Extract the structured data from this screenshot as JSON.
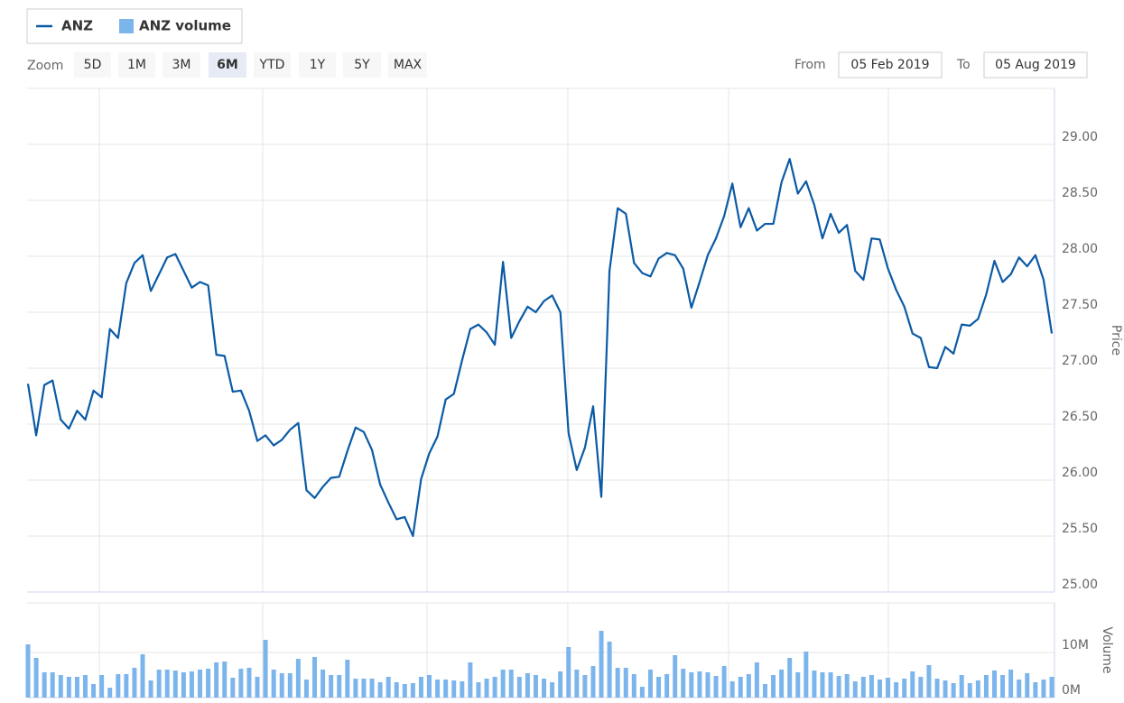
{
  "range_selector": {
    "zoom_label": "Zoom",
    "buttons": [
      "5D",
      "1M",
      "3M",
      "6M",
      "YTD",
      "1Y",
      "5Y",
      "MAX"
    ],
    "selected": "6M",
    "from_label": "From",
    "from": "05 Feb 2019",
    "to_label": "To",
    "to": "05 Aug 2019"
  },
  "chart_data": [
    {
      "type": "line",
      "y_label": "Price",
      "categories": [
        null,
        null,
        null,
        null,
        null,
        null,
        null,
        null,
        null,
        null,
        null,
        null,
        null,
        null,
        null,
        null,
        null,
        null,
        null,
        null,
        null,
        null,
        null,
        null,
        null,
        null,
        null,
        null,
        null,
        null,
        null,
        null,
        null,
        null,
        null,
        null,
        null,
        null,
        null,
        null,
        null,
        null,
        null,
        null,
        null,
        null,
        null,
        null,
        null,
        null,
        null,
        null,
        null,
        null,
        null,
        null,
        null,
        null,
        null,
        null,
        null,
        null,
        null,
        null,
        null,
        null,
        null,
        null,
        null,
        null,
        null,
        null,
        null,
        null,
        null,
        null,
        null,
        null,
        null,
        null,
        null,
        null,
        null,
        null,
        null,
        null,
        null,
        null,
        null,
        null,
        null,
        null,
        null,
        null,
        null,
        null,
        null,
        null,
        null,
        null,
        null,
        null,
        null,
        null,
        null,
        null,
        null,
        null,
        null,
        null,
        null,
        null,
        null,
        null,
        null,
        null,
        null,
        null,
        null,
        null,
        null,
        null,
        null,
        null,
        null,
        null
      ],
      "series": [
        {
          "name": "ANZ",
          "color": "#0b5aa6",
          "values": [
            26.86,
            26.4,
            26.85,
            26.89,
            26.54,
            26.46,
            26.62,
            26.54,
            26.8,
            26.74,
            27.35,
            27.27,
            27.76,
            27.94,
            28.01,
            27.69,
            27.84,
            27.99,
            28.02,
            27.87,
            27.72,
            27.77,
            27.74,
            27.12,
            27.11,
            26.79,
            26.8,
            26.62,
            26.35,
            26.4,
            26.31,
            26.36,
            26.45,
            26.51,
            25.91,
            25.84,
            25.94,
            26.02,
            26.03,
            26.26,
            26.47,
            26.43,
            26.27,
            25.96,
            25.8,
            25.65,
            25.67,
            25.5,
            26.01,
            26.24,
            26.39,
            26.72,
            26.77,
            27.07,
            27.35,
            27.39,
            27.32,
            27.21,
            27.95,
            27.27,
            27.42,
            27.55,
            27.5,
            27.6,
            27.65,
            27.5,
            26.42,
            26.09,
            26.29,
            26.66,
            25.85,
            27.87,
            28.43,
            28.38,
            27.94,
            27.85,
            27.82,
            27.98,
            28.03,
            28.01,
            27.89,
            27.54,
            27.77,
            28.01,
            28.16,
            28.36,
            28.65,
            28.26,
            28.43,
            28.23,
            28.29,
            28.29,
            28.66,
            28.87,
            28.56,
            28.67,
            28.46,
            28.16,
            28.38,
            28.21,
            28.28,
            27.87,
            27.79,
            28.16,
            28.15,
            27.89,
            27.7,
            27.55,
            27.31,
            27.27,
            27.01,
            27.0,
            27.19,
            27.13,
            27.39,
            27.38,
            27.44,
            27.66,
            27.96,
            27.77,
            27.84,
            27.99,
            27.91,
            28.01,
            27.79,
            27.31
          ]
        }
      ],
      "ylim": [
        25,
        29.5
      ],
      "yticks": [
        {
          "value": 25,
          "label": "25.00"
        },
        {
          "value": 25.5,
          "label": "25.50"
        },
        {
          "value": 26,
          "label": "26.00"
        },
        {
          "value": 26.5,
          "label": "26.50"
        },
        {
          "value": 27,
          "label": "27.00"
        },
        {
          "value": 27.5,
          "label": "27.50"
        },
        {
          "value": 28,
          "label": "28.00"
        },
        {
          "value": 28.5,
          "label": "28.50"
        },
        {
          "value": 29,
          "label": "29.00"
        }
      ],
      "grid": true
    },
    {
      "type": "bar",
      "y_label": "Volume",
      "categories": [
        null,
        null,
        null,
        null,
        null,
        null,
        null,
        null,
        null,
        null,
        null,
        null,
        null,
        null,
        null,
        null,
        null,
        null,
        null,
        null,
        null,
        null,
        null,
        null,
        null,
        null,
        null,
        null,
        null,
        null,
        null,
        null,
        null,
        null,
        null,
        null,
        null,
        null,
        null,
        null,
        null,
        null,
        null,
        null,
        null,
        null,
        null,
        null,
        null,
        null,
        null,
        null,
        null,
        null,
        null,
        null,
        null,
        null,
        null,
        null,
        null,
        null,
        null,
        null,
        null,
        null,
        null,
        null,
        null,
        null,
        null,
        null,
        null,
        null,
        null,
        null,
        null,
        null,
        null,
        null,
        null,
        null,
        null,
        null,
        null,
        null,
        null,
        null,
        null,
        null,
        null,
        null,
        null,
        null,
        null,
        null,
        null,
        null,
        null,
        null,
        null,
        null,
        null,
        null,
        null,
        null,
        null,
        null,
        null,
        null,
        null,
        null,
        null,
        null,
        null,
        null,
        null,
        null,
        null,
        null,
        null,
        null,
        null,
        null,
        null,
        null
      ],
      "series": [
        {
          "name": "ANZ volume",
          "color": "#7cb5ec",
          "values": [
            11.8,
            8.8,
            5.6,
            5.6,
            5.0,
            4.6,
            4.6,
            5.0,
            3.0,
            5.0,
            2.2,
            5.2,
            5.2,
            6.6,
            9.6,
            3.8,
            6.2,
            6.2,
            6.0,
            5.6,
            5.8,
            6.2,
            6.4,
            7.8,
            8.0,
            4.4,
            6.4,
            6.6,
            4.6,
            12.8,
            6.2,
            5.4,
            5.4,
            8.6,
            4.0,
            9.0,
            6.2,
            5.0,
            5.0,
            8.4,
            4.2,
            4.2,
            4.2,
            3.4,
            4.6,
            3.4,
            3.0,
            3.2,
            4.6,
            5.0,
            4.0,
            4.0,
            3.8,
            3.6,
            7.8,
            3.4,
            4.2,
            4.6,
            6.2,
            6.2,
            4.6,
            5.4,
            5.0,
            4.2,
            3.4,
            5.8,
            11.2,
            6.2,
            5.0,
            7.0,
            14.8,
            12.4,
            6.6,
            6.6,
            5.2,
            2.4,
            6.2,
            4.6,
            5.2,
            9.4,
            6.4,
            5.6,
            5.8,
            5.6,
            4.8,
            7.0,
            3.6,
            4.6,
            5.2,
            7.8,
            3.0,
            5.0,
            6.2,
            8.8,
            5.6,
            10.2,
            6.0,
            5.6,
            5.6,
            4.8,
            5.2,
            3.6,
            4.6,
            5.0,
            4.0,
            4.4,
            3.4,
            4.2,
            5.8,
            4.6,
            7.2,
            4.2,
            3.8,
            3.2,
            5.0,
            3.2,
            3.8,
            5.0,
            6.0,
            5.0,
            6.2,
            4.0,
            5.4,
            3.4,
            4.0,
            4.6
          ]
        }
      ],
      "ylim": [
        0,
        21
      ],
      "yticks": [
        {
          "value": 0,
          "label": "0M"
        },
        {
          "value": 10,
          "label": "10M"
        }
      ],
      "grid": true
    }
  ]
}
